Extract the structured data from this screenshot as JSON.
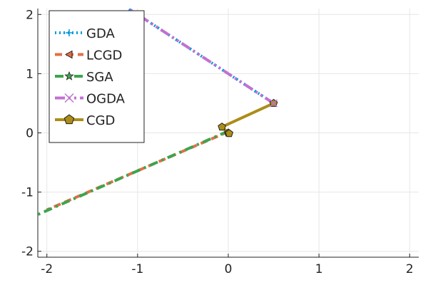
{
  "chart_data": {
    "type": "line",
    "xlim": [
      -2.1,
      2.1
    ],
    "ylim": [
      -2.1,
      2.1
    ],
    "xticks": [
      -2,
      -1,
      0,
      1,
      2
    ],
    "yticks": [
      -2,
      -1,
      0,
      1,
      2
    ],
    "xtick_labels": [
      "-2",
      "-1",
      "0",
      "1",
      "2"
    ],
    "ytick_labels": [
      "-2",
      "-1",
      "0",
      "1",
      "2"
    ],
    "grid": true,
    "legend_position": "top-left",
    "series": [
      {
        "name": "GDA",
        "color": "#0099dd",
        "style": "dot",
        "marker": "cross",
        "points": [
          [
            0.5,
            0.5
          ],
          [
            -1.1,
            2.1
          ]
        ]
      },
      {
        "name": "LCGD",
        "color": "#e26f46",
        "style": "dash",
        "marker": "triangle-left",
        "points": [
          [
            0.0,
            0.02
          ],
          [
            -2.0,
            -1.3
          ]
        ]
      },
      {
        "name": "SGA",
        "color": "#3da44d",
        "style": "dashdot",
        "marker": "star",
        "points": [
          [
            0.0,
            0.03
          ],
          [
            -2.1,
            -1.38
          ]
        ]
      },
      {
        "name": "OGDA",
        "color": "#c271d2",
        "style": "dashdotdot",
        "marker": "x",
        "points": [
          [
            0.5,
            0.5
          ],
          [
            -1.1,
            2.1
          ]
        ]
      },
      {
        "name": "CGD",
        "color": "#ac8d18",
        "style": "solid",
        "marker": "pentagon",
        "points": [
          [
            0.5,
            0.5
          ],
          [
            -0.07,
            0.1
          ],
          [
            0.0,
            0.0
          ],
          [
            0.01,
            -0.01
          ]
        ],
        "marker_points": [
          [
            0.5,
            0.5
          ],
          [
            -0.07,
            0.1
          ],
          [
            0.0,
            0.0
          ],
          [
            0.01,
            -0.01
          ]
        ]
      }
    ]
  }
}
